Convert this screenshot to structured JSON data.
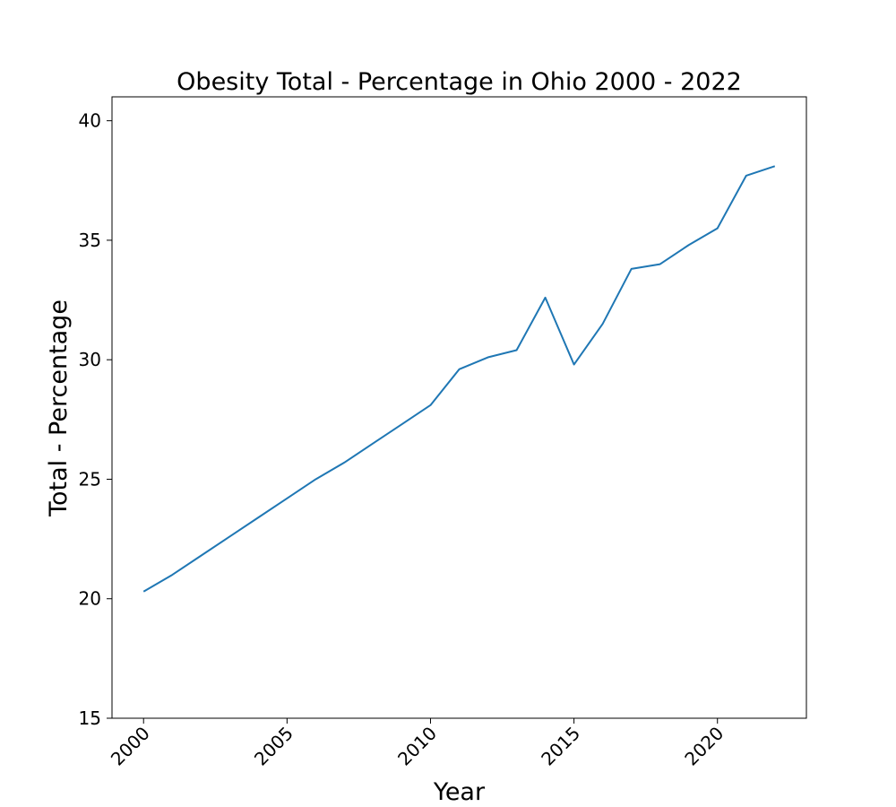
{
  "chart_data": {
    "type": "line",
    "title": "Obesity Total - Percentage in Ohio 2000 - 2022",
    "xlabel": "Year",
    "ylabel": "Total - Percentage",
    "xlim": [
      1998.9,
      2023.1
    ],
    "ylim": [
      15,
      41
    ],
    "xticks": [
      2000,
      2005,
      2010,
      2015,
      2020
    ],
    "yticks": [
      15,
      20,
      25,
      30,
      35,
      40
    ],
    "xtick_labels": [
      "2000",
      "2005",
      "2010",
      "2015",
      "2020"
    ],
    "ytick_labels": [
      "15",
      "20",
      "25",
      "30",
      "35",
      "40"
    ],
    "grid": false,
    "series": [
      {
        "color": "#1f77b4",
        "x": [
          2000,
          2001,
          2002,
          2003,
          2004,
          2005,
          2006,
          2007,
          2008,
          2009,
          2010,
          2011,
          2012,
          2013,
          2014,
          2015,
          2016,
          2017,
          2018,
          2019,
          2020,
          2021,
          2022
        ],
        "values": [
          20.3,
          21.0,
          21.8,
          22.6,
          23.4,
          24.2,
          25.0,
          25.7,
          26.5,
          27.3,
          28.1,
          29.6,
          30.1,
          30.4,
          32.6,
          29.8,
          31.5,
          33.8,
          34.0,
          34.8,
          35.5,
          37.7,
          38.1
        ]
      }
    ]
  }
}
